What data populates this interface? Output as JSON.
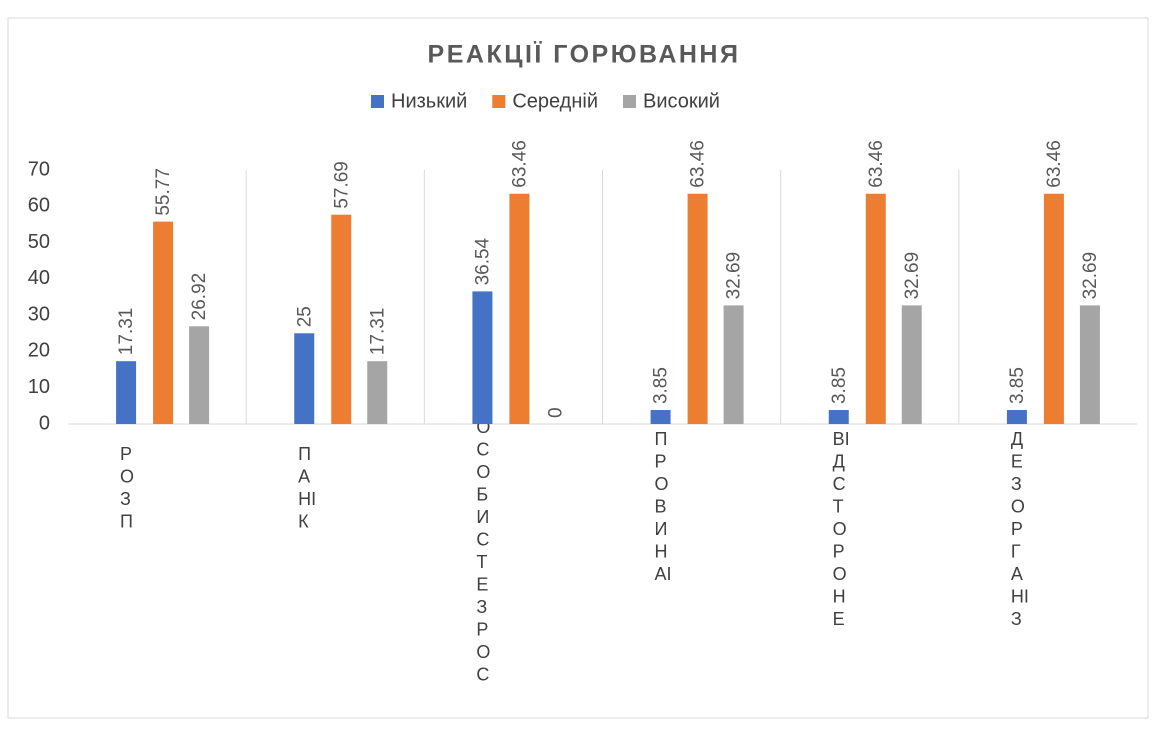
{
  "chart_data": {
    "type": "bar",
    "title": "РЕАКЦІЇ ГОРЮВАННЯ",
    "categories": [
      "РОЗП",
      "ПАНІК",
      "ОСОБИСТЕЗРОС",
      "ПРОВИНАІ",
      "ВІДСТОРОНЕ",
      "ДЕЗОРГАНІЗ"
    ],
    "series": [
      {
        "name": "Низький",
        "color": "#4472c4",
        "values": [
          17.31,
          25,
          36.54,
          3.85,
          3.85,
          3.85
        ]
      },
      {
        "name": "Середній",
        "color": "#ed7d31",
        "values": [
          55.77,
          57.69,
          63.46,
          63.46,
          63.46,
          63.46
        ]
      },
      {
        "name": "Високий",
        "color": "#a5a5a5",
        "values": [
          26.92,
          17.31,
          0,
          32.69,
          32.69,
          32.69
        ]
      }
    ],
    "ylim": [
      0,
      70
    ],
    "yticks": [
      0,
      10,
      20,
      30,
      40,
      50,
      60,
      70
    ],
    "xgrid": true,
    "legend": "top"
  }
}
